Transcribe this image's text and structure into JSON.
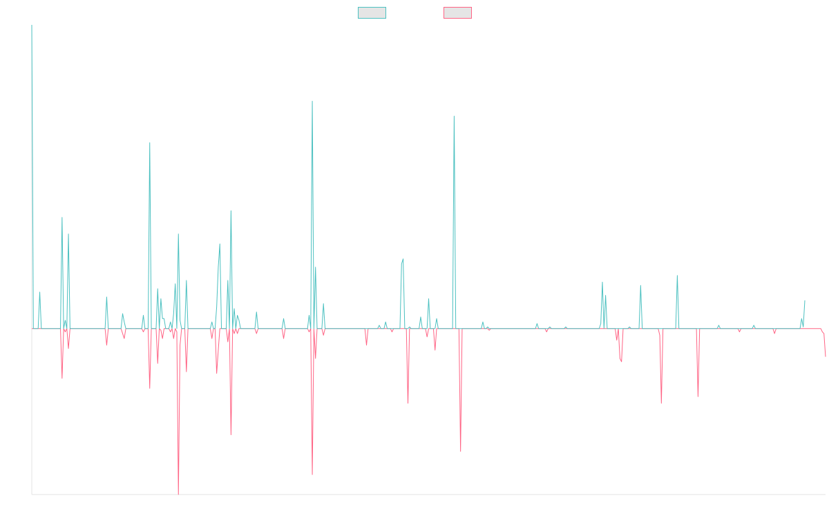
{
  "chart_data": {
    "type": "line",
    "title": "",
    "xlabel": "",
    "ylabel": "",
    "ylim": [
      -1,
      1.83
    ],
    "grid": false,
    "legend": "top-center",
    "series": [
      {
        "color": "#4bc0c0",
        "legend_fill": "#e5e5e5",
        "values": [
          1.83,
          0,
          0,
          0,
          0,
          0.22,
          0,
          0,
          0,
          0,
          0,
          0,
          0,
          0,
          0,
          0,
          0,
          0,
          0,
          0.67,
          0,
          0.05,
          0,
          0.57,
          0,
          0,
          0,
          0,
          0,
          0,
          0,
          0,
          0,
          0,
          0,
          0,
          0,
          0,
          0,
          0,
          0,
          0,
          0,
          0,
          0,
          0,
          0,
          0.19,
          0,
          0,
          0,
          0,
          0,
          0,
          0,
          0,
          0,
          0.09,
          0.04,
          0,
          0,
          0,
          0,
          0,
          0,
          0,
          0,
          0,
          0,
          0,
          0.08,
          0,
          0,
          0,
          1.12,
          0,
          0,
          0,
          0,
          0.24,
          0,
          0.18,
          0.06,
          0.06,
          0,
          0,
          0,
          0.04,
          0,
          0.09,
          0.27,
          0,
          0.57,
          0.05,
          0,
          0,
          0,
          0.29,
          0,
          0,
          0,
          0,
          0,
          0,
          0,
          0,
          0,
          0,
          0,
          0,
          0,
          0,
          0,
          0.04,
          0,
          0,
          0.13,
          0.37,
          0.51,
          0,
          0,
          0,
          0,
          0.29,
          0,
          0.71,
          0,
          0.12,
          0,
          0.08,
          0.05,
          0,
          0,
          0,
          0,
          0,
          0,
          0,
          0,
          0,
          0,
          0.1,
          0,
          0,
          0,
          0,
          0,
          0,
          0,
          0,
          0,
          0,
          0,
          0,
          0,
          0,
          0,
          0,
          0.06,
          0,
          0,
          0,
          0,
          0,
          0,
          0,
          0,
          0,
          0,
          0,
          0,
          0,
          0,
          0,
          0.08,
          0,
          1.37,
          0,
          0.37,
          0,
          0,
          0,
          0,
          0.15,
          0,
          0,
          0,
          0,
          0,
          0,
          0,
          0,
          0,
          0,
          0,
          0,
          0,
          0,
          0,
          0,
          0,
          0,
          0,
          0,
          0,
          0,
          0,
          0,
          0,
          0,
          0,
          0,
          0,
          0,
          0,
          0,
          0,
          0,
          0.02,
          0,
          0,
          0,
          0.04,
          0,
          0,
          0,
          0,
          0,
          0,
          0,
          0,
          0,
          0.39,
          0.42,
          0,
          0,
          0,
          0.01,
          0,
          0,
          0,
          0,
          0,
          0,
          0.07,
          0,
          0,
          0,
          0,
          0.18,
          0,
          0,
          0,
          0,
          0.06,
          0,
          0,
          0,
          0,
          0,
          0,
          0,
          0,
          0,
          0,
          1.28,
          0,
          0,
          0,
          0,
          0,
          0,
          0,
          0,
          0,
          0,
          0,
          0,
          0,
          0,
          0,
          0,
          0,
          0.04,
          0,
          0,
          0.01,
          0,
          0,
          0,
          0,
          0,
          0,
          0,
          0,
          0,
          0,
          0,
          0,
          0,
          0,
          0,
          0,
          0,
          0,
          0,
          0,
          0,
          0,
          0,
          0,
          0,
          0,
          0,
          0,
          0,
          0,
          0.03,
          0,
          0,
          0,
          0,
          0,
          0,
          0,
          0.01,
          0,
          0,
          0,
          0,
          0,
          0,
          0,
          0,
          0,
          0.01,
          0,
          0,
          0,
          0,
          0,
          0,
          0,
          0,
          0,
          0,
          0,
          0,
          0,
          0,
          0,
          0,
          0,
          0,
          0,
          0,
          0,
          0.03,
          0.28,
          0,
          0.2,
          0,
          0,
          0,
          0,
          0,
          0,
          0,
          0,
          0,
          0,
          0,
          0,
          0,
          0,
          0.01,
          0,
          0,
          0,
          0,
          0,
          0,
          0.26,
          0,
          0,
          0,
          0,
          0,
          0,
          0,
          0,
          0,
          0,
          0,
          0,
          0,
          0,
          0,
          0,
          0,
          0,
          0,
          0,
          0,
          0,
          0.32,
          0,
          0,
          0,
          0,
          0,
          0,
          0,
          0,
          0,
          0,
          0,
          0,
          0,
          0,
          0,
          0,
          0,
          0,
          0,
          0,
          0,
          0,
          0,
          0,
          0,
          0.02,
          0,
          0,
          0,
          0,
          0,
          0,
          0,
          0,
          0,
          0,
          0,
          0,
          0,
          0,
          0,
          0,
          0,
          0,
          0,
          0,
          0,
          0.02,
          0,
          0,
          0,
          0,
          0,
          0,
          0,
          0,
          0,
          0,
          0,
          0,
          0,
          0,
          0,
          0,
          0,
          0,
          0,
          0,
          0,
          0,
          0,
          0,
          0,
          0,
          0,
          0,
          0,
          0.06,
          0.01,
          0.17
        ]
      },
      {
        "color": "#ff6384",
        "legend_fill": "#e5e5e5",
        "values": [
          0,
          0,
          0,
          0,
          0,
          0,
          0,
          0,
          0,
          0,
          0,
          0,
          0,
          0,
          0,
          0,
          0,
          0,
          0,
          -0.3,
          0,
          -0.02,
          0,
          -0.12,
          0,
          0,
          0,
          0,
          0,
          0,
          0,
          0,
          0,
          0,
          0,
          0,
          0,
          0,
          0,
          0,
          0,
          0,
          0,
          0,
          0,
          0,
          0,
          -0.1,
          0,
          0,
          0,
          0,
          0,
          0,
          0,
          0,
          0,
          -0.03,
          -0.06,
          0,
          0,
          0,
          0,
          0,
          0,
          0,
          0,
          0,
          0,
          0,
          -0.02,
          0,
          0,
          0,
          -0.36,
          0,
          0,
          0,
          0,
          -0.21,
          0,
          -0.01,
          -0.06,
          0,
          0,
          0,
          0,
          -0.02,
          0,
          -0.06,
          0,
          -0.02,
          -1,
          -0.1,
          0,
          0,
          0,
          -0.26,
          0,
          0,
          0,
          0,
          0,
          0,
          0,
          0,
          0,
          0,
          0,
          0,
          0,
          0,
          0,
          -0.06,
          0,
          0,
          -0.27,
          -0.13,
          0,
          0,
          0,
          0,
          0,
          -0.08,
          0,
          -0.64,
          0,
          -0.03,
          0,
          -0.03,
          0,
          0,
          0,
          0,
          0,
          0,
          0,
          0,
          0,
          0,
          0,
          -0.03,
          0,
          0,
          0,
          0,
          0,
          0,
          0,
          0,
          0,
          0,
          0,
          0,
          0,
          0,
          0,
          0,
          -0.06,
          0,
          0,
          0,
          0,
          0,
          0,
          0,
          0,
          0,
          0,
          0,
          0,
          0,
          0,
          0,
          -0.02,
          0,
          -0.88,
          0,
          -0.18,
          0,
          0,
          0,
          0,
          -0.04,
          0,
          0,
          0,
          0,
          0,
          0,
          0,
          0,
          0,
          0,
          0,
          0,
          0,
          0,
          0,
          0,
          0,
          0,
          0,
          0,
          0,
          0,
          0,
          0,
          0,
          0,
          -0.1,
          0,
          0,
          0,
          0,
          0,
          0,
          0,
          0,
          0,
          0,
          0,
          0,
          0,
          0,
          0,
          -0.02,
          0,
          0,
          0,
          0,
          0,
          0,
          0,
          0,
          0,
          -0.45,
          0,
          0,
          0,
          0,
          0,
          0,
          0,
          0,
          0,
          0,
          0,
          -0.05,
          0,
          0,
          0,
          0,
          -0.13,
          0,
          0,
          0,
          0,
          0,
          0,
          0,
          0,
          0,
          0,
          0,
          0,
          0,
          0,
          0,
          -0.74,
          0,
          0,
          0,
          0,
          0,
          0,
          0,
          0,
          0,
          0,
          0,
          0,
          0,
          0,
          0,
          0,
          0,
          -0.01,
          0,
          0,
          0,
          0,
          0,
          0,
          0,
          0,
          0,
          0,
          0,
          0,
          0,
          0,
          0,
          0,
          0,
          0,
          0,
          0,
          0,
          0,
          0,
          0,
          0,
          0,
          0,
          0,
          0,
          0,
          0,
          0,
          0,
          0,
          0,
          -0.02,
          0,
          0,
          0,
          0,
          0,
          0,
          0,
          0,
          0,
          0,
          0,
          0,
          0,
          0,
          0,
          0,
          0,
          0,
          0,
          0,
          0,
          0,
          0,
          0,
          0,
          0,
          0,
          0,
          0,
          0,
          0,
          0,
          0,
          0,
          0,
          0,
          0,
          0,
          0,
          0,
          0,
          0,
          0,
          -0.07,
          0,
          -0.18,
          -0.2,
          0,
          0,
          0,
          0,
          0,
          0,
          0,
          0,
          0,
          0,
          0,
          0,
          0,
          0,
          0,
          0,
          0,
          0,
          0,
          0,
          0,
          0,
          0,
          -0.04,
          -0.45,
          0,
          0,
          0,
          0,
          0,
          0,
          0,
          0,
          0,
          0,
          0,
          0,
          0,
          0,
          0,
          0,
          0,
          0,
          0,
          0,
          0,
          0,
          -0.41,
          0,
          0,
          0,
          0,
          0,
          0,
          0,
          0,
          0,
          0,
          0,
          0,
          0,
          0,
          0,
          0,
          0,
          0,
          0,
          0,
          0,
          0,
          0,
          0,
          0,
          -0.02,
          0,
          0,
          0,
          0,
          0,
          0,
          0,
          0,
          0,
          0,
          0,
          0,
          0,
          0,
          0,
          0,
          0,
          0,
          0,
          0,
          0,
          -0.03,
          0,
          0,
          0,
          0,
          0,
          0,
          0,
          0,
          0,
          0,
          0,
          0,
          0,
          0,
          0,
          0,
          0,
          0,
          0,
          0,
          0,
          0,
          0,
          0,
          0,
          0,
          0,
          0,
          0,
          -0.02,
          -0.03,
          -0.17
        ]
      }
    ]
  }
}
